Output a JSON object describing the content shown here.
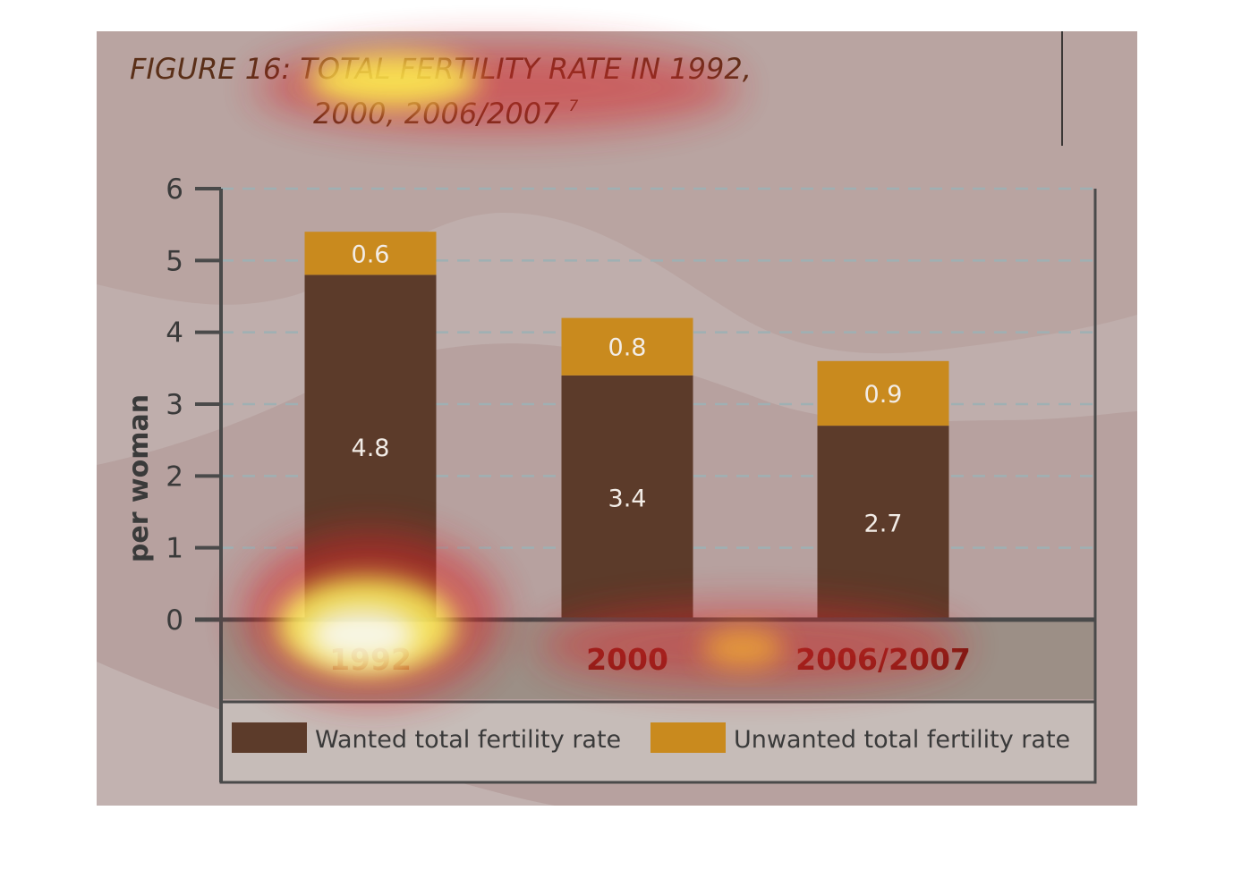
{
  "figure": {
    "title_line1": "FIGURE 16: TOTAL FERTILITY RATE IN 1992,",
    "title_line2": "2000, 2006/2007",
    "title_footnote": "7"
  },
  "chart_data": {
    "type": "bar",
    "stacked": true,
    "title": "FIGURE 16: TOTAL FERTILITY RATE IN 1992, 2000, 2006/2007",
    "xlabel": "",
    "ylabel": "per woman",
    "ylim": [
      0,
      6
    ],
    "yticks": [
      0,
      1,
      2,
      3,
      4,
      5,
      6
    ],
    "grid": true,
    "categories": [
      "1992",
      "2000",
      "2006/2007"
    ],
    "series": [
      {
        "name": "Wanted total fertility rate",
        "values": [
          4.8,
          3.4,
          2.7
        ],
        "color": "#5c3b2a"
      },
      {
        "name": "Unwanted total fertility rate",
        "values": [
          0.6,
          0.8,
          0.9
        ],
        "color": "#c98a1e"
      }
    ],
    "legend_position": "bottom"
  },
  "colors": {
    "background": "#b9a4a1",
    "axis": "#4a4a4a",
    "grid": "#9fb0b3",
    "heat_hot": "#ffff80",
    "heat_warm": "#e23a2a"
  }
}
